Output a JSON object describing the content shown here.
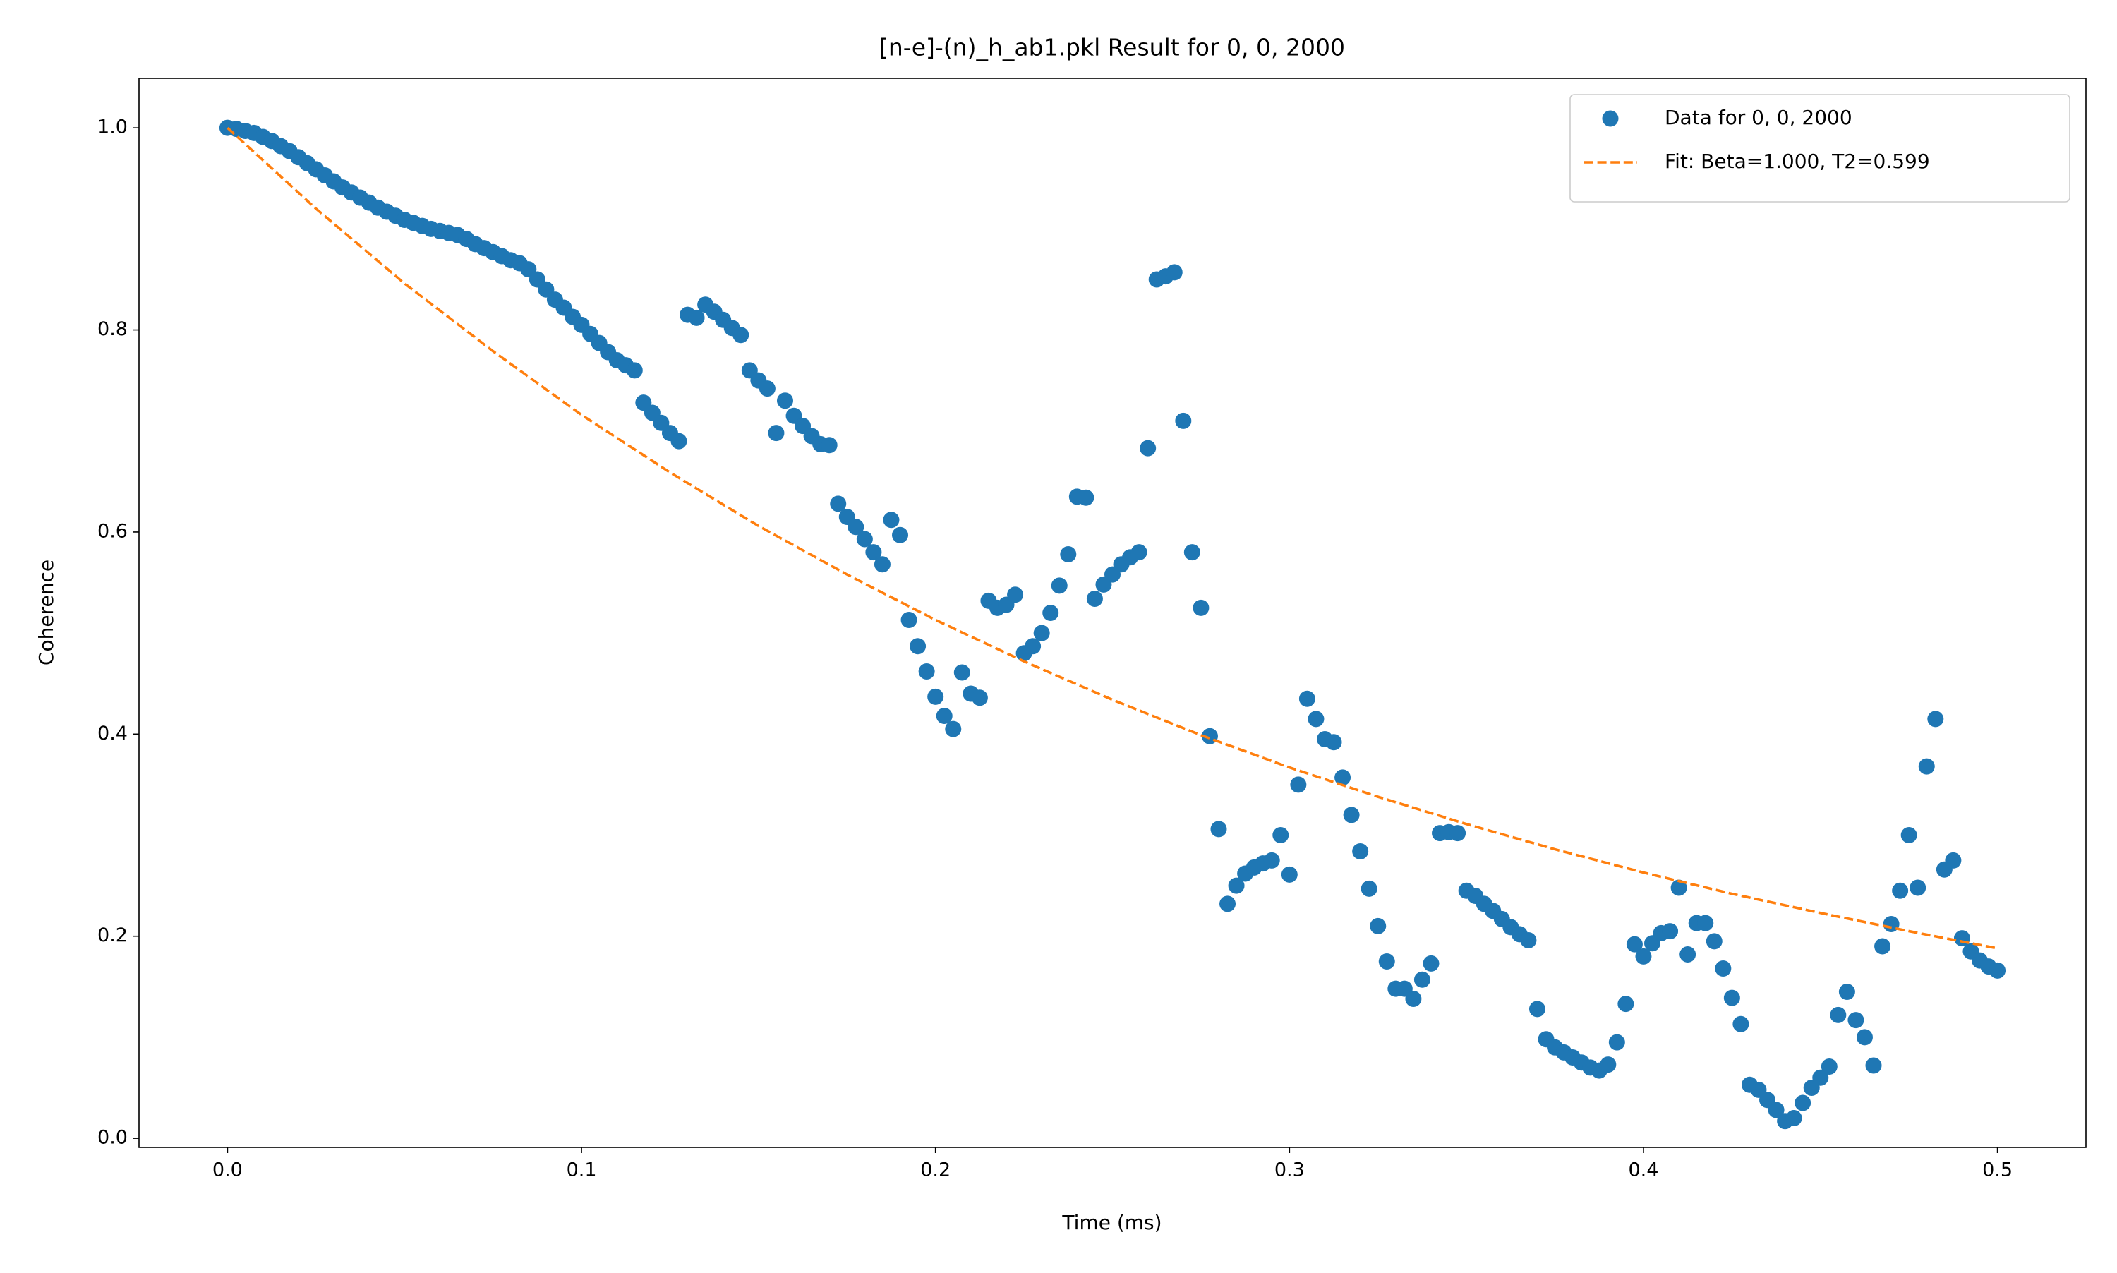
{
  "chart_data": {
    "type": "scatter",
    "title": "[n-e]-(n)_h_ab1.pkl Result for 0, 0, 2000",
    "xlabel": "Time (ms)",
    "ylabel": "Coherence",
    "xlim": [
      -0.025,
      0.525
    ],
    "ylim": [
      -0.009,
      1.049
    ],
    "xticks": [
      {
        "value": 0,
        "label": "0.0"
      },
      0.1,
      0.2,
      0.3,
      0.4,
      0.5
    ],
    "yticks": [
      {
        "value": 0,
        "label": "0.0"
      },
      0.2,
      0.4,
      0.6,
      0.8,
      {
        "value": 1,
        "label": "1.0"
      }
    ],
    "grid": false,
    "legend": "upper right",
    "series": [
      {
        "name": "Data for 0, 0, 2000",
        "color": "#1f77b4",
        "style": "marker",
        "x": [
          0,
          0.0025,
          0.005,
          0.0075,
          0.01,
          0.0125,
          0.015,
          0.0175,
          0.02,
          0.0225,
          0.025,
          0.0275,
          0.03,
          0.0325,
          0.035,
          0.0375,
          0.04,
          0.0425,
          0.045,
          0.0475,
          0.05,
          0.0525,
          0.055,
          0.0575,
          0.06,
          0.0625,
          0.065,
          0.0675,
          0.07,
          0.0725,
          0.075,
          0.0775,
          0.08,
          0.0825,
          0.085,
          0.0875,
          0.09,
          0.0925,
          0.095,
          0.0975,
          0.1,
          0.1025,
          0.105,
          0.1075,
          0.11,
          0.1125,
          0.115,
          0.1175,
          0.12,
          0.1225,
          0.125,
          0.1275,
          0.13,
          0.1325,
          0.135,
          0.1375,
          0.14,
          0.1425,
          0.145,
          0.1475,
          0.15,
          0.1525,
          0.155,
          0.1575,
          0.16,
          0.1625,
          0.165,
          0.1675,
          0.17,
          0.1725,
          0.175,
          0.1775,
          0.18,
          0.1825,
          0.185,
          0.1875,
          0.19,
          0.1925,
          0.195,
          0.1975,
          0.2,
          0.2025,
          0.205,
          0.2075,
          0.21,
          0.2125,
          0.215,
          0.2175,
          0.22,
          0.2225,
          0.225,
          0.2275,
          0.23,
          0.2325,
          0.235,
          0.2375,
          0.24,
          0.2425,
          0.245,
          0.2475,
          0.25,
          0.2525,
          0.255,
          0.2575,
          0.26,
          0.2625,
          0.265,
          0.2675,
          0.27,
          0.2725,
          0.275,
          0.2775,
          0.28,
          0.2825,
          0.285,
          0.2875,
          0.29,
          0.2925,
          0.295,
          0.2975,
          0.3,
          0.3025,
          0.305,
          0.3075,
          0.31,
          0.3125,
          0.315,
          0.3175,
          0.32,
          0.3225,
          0.325,
          0.3275,
          0.33,
          0.3325,
          0.335,
          0.3375,
          0.34,
          0.3425,
          0.345,
          0.3475,
          0.35,
          0.3525,
          0.355,
          0.3575,
          0.36,
          0.3625,
          0.365,
          0.3675,
          0.37,
          0.3725,
          0.375,
          0.3775,
          0.38,
          0.3825,
          0.385,
          0.3875,
          0.39,
          0.3925,
          0.395,
          0.3975,
          0.4,
          0.4025,
          0.405,
          0.4075,
          0.41,
          0.4125,
          0.415,
          0.4175,
          0.42,
          0.4225,
          0.425,
          0.4275,
          0.43,
          0.4325,
          0.435,
          0.4375,
          0.44,
          0.4425,
          0.445,
          0.4475,
          0.45,
          0.4525,
          0.455,
          0.4575,
          0.46,
          0.4625,
          0.465,
          0.4675,
          0.47,
          0.4725,
          0.475,
          0.4775,
          0.48,
          0.4825,
          0.485,
          0.4875,
          0.49,
          0.4925,
          0.495,
          0.4975,
          0.5
        ],
        "values": [
          1.0,
          0.999,
          0.997,
          0.995,
          0.991,
          0.987,
          0.982,
          0.977,
          0.971,
          0.965,
          0.959,
          0.953,
          0.947,
          0.941,
          0.936,
          0.931,
          0.926,
          0.921,
          0.917,
          0.913,
          0.909,
          0.906,
          0.903,
          0.9,
          0.898,
          0.896,
          0.894,
          0.89,
          0.885,
          0.881,
          0.877,
          0.873,
          0.869,
          0.866,
          0.86,
          0.85,
          0.84,
          0.83,
          0.822,
          0.813,
          0.805,
          0.796,
          0.787,
          0.778,
          0.77,
          0.765,
          0.76,
          0.728,
          0.718,
          0.708,
          0.698,
          0.69,
          0.815,
          0.812,
          0.825,
          0.818,
          0.81,
          0.802,
          0.795,
          0.76,
          0.75,
          0.742,
          0.698,
          0.73,
          0.715,
          0.705,
          0.695,
          0.687,
          0.686,
          0.628,
          0.615,
          0.605,
          0.593,
          0.58,
          0.568,
          0.612,
          0.597,
          0.513,
          0.487,
          0.462,
          0.437,
          0.418,
          0.405,
          0.461,
          0.44,
          0.436,
          0.532,
          0.525,
          0.528,
          0.538,
          0.48,
          0.487,
          0.5,
          0.52,
          0.547,
          0.578,
          0.635,
          0.634,
          0.534,
          0.548,
          0.558,
          0.568,
          0.575,
          0.58,
          0.683,
          0.85,
          0.853,
          0.857,
          0.71,
          0.58,
          0.525,
          0.398,
          0.306,
          0.232,
          0.25,
          0.262,
          0.268,
          0.272,
          0.275,
          0.3,
          0.261,
          0.35,
          0.435,
          0.415,
          0.395,
          0.392,
          0.357,
          0.32,
          0.284,
          0.247,
          0.21,
          0.175,
          0.148,
          0.148,
          0.138,
          0.157,
          0.173,
          0.302,
          0.303,
          0.302,
          0.245,
          0.24,
          0.232,
          0.225,
          0.217,
          0.209,
          0.202,
          0.196,
          0.128,
          0.098,
          0.09,
          0.085,
          0.08,
          0.075,
          0.07,
          0.067,
          0.073,
          0.095,
          0.133,
          0.192,
          0.18,
          0.193,
          0.203,
          0.205,
          0.248,
          0.182,
          0.213,
          0.213,
          0.195,
          0.168,
          0.139,
          0.113,
          0.053,
          0.048,
          0.038,
          0.028,
          0.017,
          0.02,
          0.035,
          0.05,
          0.06,
          0.071,
          0.122,
          0.145,
          0.117,
          0.1,
          0.072,
          0.19,
          0.212,
          0.245,
          0.3,
          0.248,
          0.368,
          0.415,
          0.266,
          0.275,
          0.198,
          0.185,
          0.176,
          0.17,
          0.166
        ]
      },
      {
        "name": "Fit: Beta=1.000, T2=0.599",
        "color": "#ff7f0e",
        "style": "dashed",
        "x": [
          0,
          0.025,
          0.05,
          0.075,
          0.1,
          0.125,
          0.15,
          0.175,
          0.2,
          0.225,
          0.25,
          0.275,
          0.3,
          0.325,
          0.35,
          0.375,
          0.4,
          0.425,
          0.45,
          0.475,
          0.5
        ],
        "values": [
          1,
          0.92,
          0.846,
          0.779,
          0.716,
          0.659,
          0.606,
          0.558,
          0.513,
          0.472,
          0.434,
          0.399,
          0.367,
          0.338,
          0.311,
          0.286,
          0.263,
          0.242,
          0.223,
          0.205,
          0.188
        ]
      }
    ]
  }
}
